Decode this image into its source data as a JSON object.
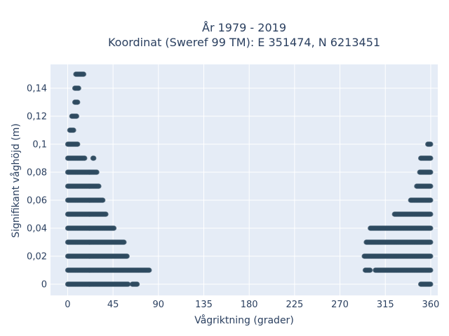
{
  "chart_data": {
    "type": "scatter",
    "title_line1": "År 1979 - 2019",
    "title_line2": "Koordinat (Sweref 99 TM): E 351474, N 6213451",
    "xlabel": "Vågriktning (grader)",
    "ylabel": "Signifikant våghöjd (m)",
    "xlim": [
      -17,
      367
    ],
    "ylim": [
      -0.008,
      0.157
    ],
    "x_ticks": [
      0,
      45,
      90,
      135,
      180,
      225,
      270,
      315,
      360
    ],
    "x_tick_labels": [
      "0",
      "45",
      "90",
      "135",
      "180",
      "225",
      "270",
      "315",
      "360"
    ],
    "y_ticks": [
      0,
      0.02,
      0.04,
      0.06,
      0.08,
      0.1,
      0.12,
      0.14
    ],
    "y_tick_labels": [
      "0",
      "0,02",
      "0,04",
      "0,06",
      "0,08",
      "0,1",
      "0,12",
      "0,14"
    ],
    "grid": true,
    "marker_color": "#2f4b60",
    "background": "#e5ecf6",
    "point_bands": [
      {
        "y": 0.0,
        "segments": [
          [
            0,
            60
          ],
          [
            64,
            69
          ],
          [
            350,
            360
          ]
        ]
      },
      {
        "y": 0.01,
        "segments": [
          [
            0,
            81
          ],
          [
            295,
            300
          ],
          [
            305,
            360
          ]
        ]
      },
      {
        "y": 0.02,
        "segments": [
          [
            0,
            59
          ],
          [
            294,
            360
          ]
        ]
      },
      {
        "y": 0.03,
        "segments": [
          [
            0,
            56
          ],
          [
            296,
            360
          ]
        ]
      },
      {
        "y": 0.04,
        "segments": [
          [
            0,
            46
          ],
          [
            300,
            360
          ]
        ]
      },
      {
        "y": 0.05,
        "segments": [
          [
            0,
            38
          ],
          [
            324,
            360
          ]
        ]
      },
      {
        "y": 0.06,
        "segments": [
          [
            0,
            35
          ],
          [
            340,
            360
          ]
        ]
      },
      {
        "y": 0.07,
        "segments": [
          [
            0,
            31
          ],
          [
            346,
            360
          ]
        ]
      },
      {
        "y": 0.08,
        "segments": [
          [
            0,
            29
          ],
          [
            349,
            360
          ]
        ]
      },
      {
        "y": 0.09,
        "segments": [
          [
            0,
            17
          ],
          [
            25,
            26
          ],
          [
            350,
            360
          ]
        ]
      },
      {
        "y": 0.1,
        "segments": [
          [
            0,
            10
          ],
          [
            357,
            360
          ]
        ]
      },
      {
        "y": 0.11,
        "segments": [
          [
            2,
            6
          ]
        ]
      },
      {
        "y": 0.12,
        "segments": [
          [
            4,
            9
          ]
        ]
      },
      {
        "y": 0.13,
        "segments": [
          [
            7,
            10
          ]
        ]
      },
      {
        "y": 0.14,
        "segments": [
          [
            7,
            11
          ]
        ]
      },
      {
        "y": 0.15,
        "segments": [
          [
            8,
            16
          ]
        ]
      }
    ]
  }
}
